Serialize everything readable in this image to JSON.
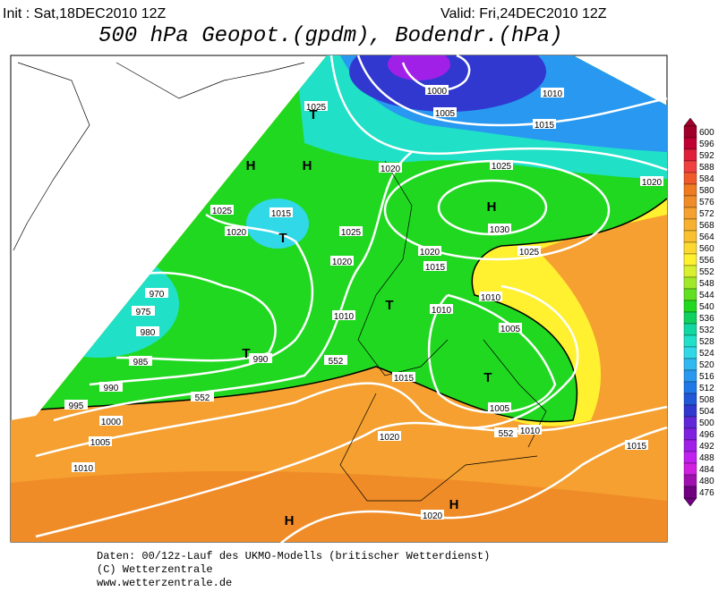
{
  "header": {
    "init": "Init : Sat,18DEC2010 12Z",
    "valid": "Valid: Fri,24DEC2010 12Z",
    "title": "500 hPa Geopot.(gpdm), Bodendr.(hPa)"
  },
  "map": {
    "labels": [
      "1000",
      "1010",
      "1005",
      "1025",
      "1015",
      "T",
      "H",
      "H",
      "1020",
      "1025",
      "1020",
      "1025",
      "1015",
      "1020",
      "T",
      "H",
      "1030",
      "1025",
      "1020",
      "1020",
      "1015",
      "1025",
      "970",
      "1010",
      "975",
      "T",
      "1010",
      "1010",
      "980",
      "1005",
      "985",
      "T",
      "990",
      "1015",
      "T",
      "990",
      "995",
      "1005",
      "1000",
      "1010",
      "1005",
      "1020",
      "1015",
      "1010",
      "H",
      "1020",
      "H",
      "552",
      "552",
      "552"
    ]
  },
  "legend": {
    "levels": [
      600,
      596,
      592,
      588,
      584,
      580,
      576,
      572,
      568,
      564,
      560,
      556,
      552,
      548,
      544,
      540,
      536,
      532,
      528,
      524,
      520,
      516,
      512,
      508,
      504,
      500,
      496,
      492,
      488,
      484,
      480,
      476
    ],
    "colors": [
      "#a0002a",
      "#c00030",
      "#e0203a",
      "#f04040",
      "#f05a2a",
      "#f07a20",
      "#f08c28",
      "#f5a030",
      "#f8b030",
      "#fac030",
      "#fcd830",
      "#fff030",
      "#d8f030",
      "#a0e828",
      "#60e020",
      "#20d820",
      "#10d060",
      "#10d8a0",
      "#20e0c8",
      "#30d8e8",
      "#30b8f0",
      "#2898f0",
      "#2078e8",
      "#2058d8",
      "#3038d0",
      "#6028d8",
      "#8020e0",
      "#a020e8",
      "#c020f0",
      "#d020e0",
      "#a010b0",
      "#700080"
    ]
  },
  "footer": [
    "Daten: 00/12z-Lauf des UKMO-Modells (britischer Wetterdienst)",
    "(C) Wetterzentrale",
    "www.wetterzentrale.de"
  ]
}
